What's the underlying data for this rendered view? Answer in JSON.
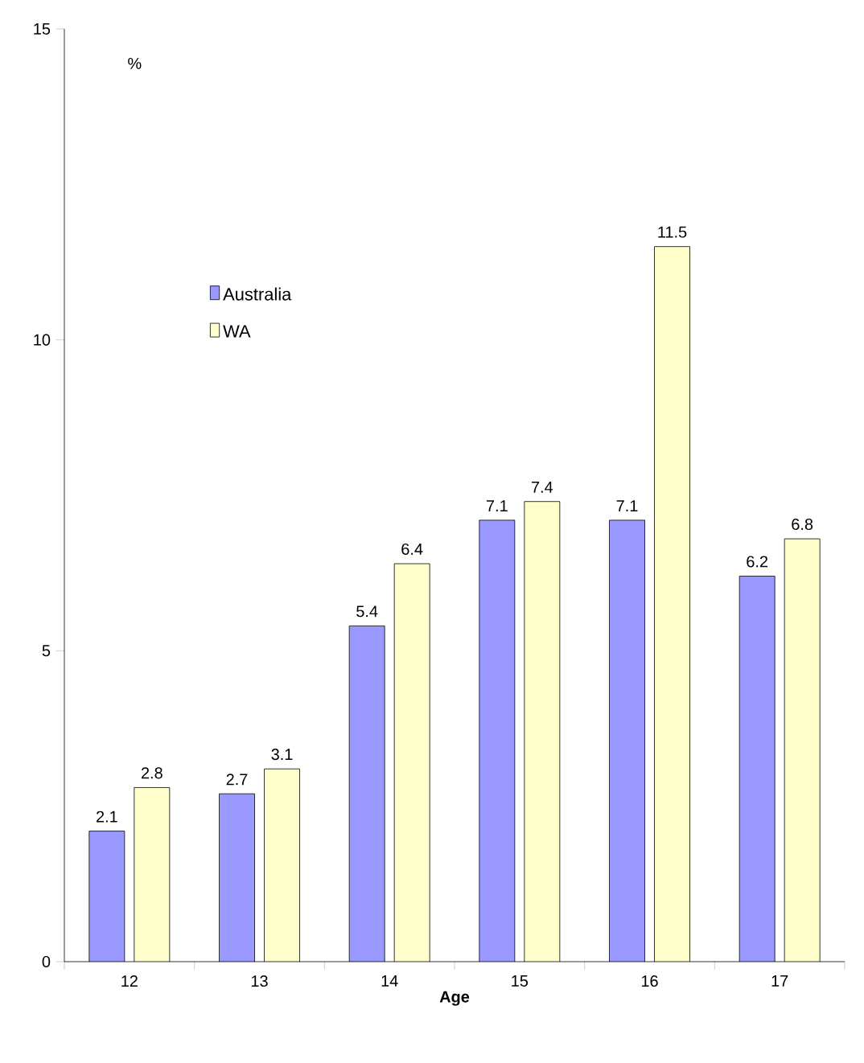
{
  "chart_data": {
    "type": "bar",
    "xlabel": "Age",
    "ylabel": "%",
    "categories": [
      "12",
      "13",
      "14",
      "15",
      "16",
      "17"
    ],
    "series": [
      {
        "name": "Australia",
        "color": "#9999ff",
        "values": [
          2.1,
          2.7,
          5.4,
          7.1,
          7.1,
          6.2
        ]
      },
      {
        "name": "WA",
        "color": "#ffffcc",
        "values": [
          2.8,
          3.1,
          6.4,
          7.4,
          11.5,
          6.8
        ]
      }
    ],
    "ylim": [
      0,
      15
    ],
    "yticks": [
      0,
      5,
      10,
      15
    ],
    "data_labels": true,
    "legend": "left",
    "grid": false
  }
}
